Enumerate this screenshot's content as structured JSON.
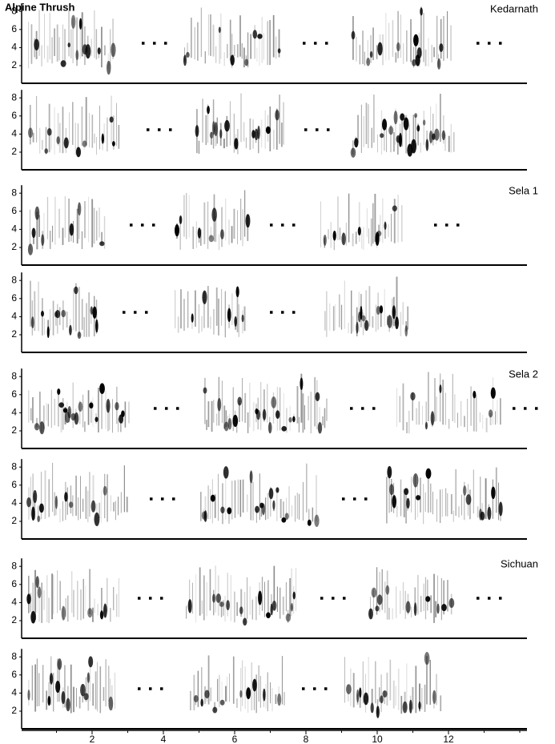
{
  "title": "Alpine Thrush",
  "sites": [
    "Kedarnath",
    "Sela 1",
    "Sela 2",
    "Sichuan"
  ],
  "yticks": [
    2,
    4,
    6,
    8
  ],
  "xticks": [
    2,
    4,
    6,
    8,
    10,
    12
  ]
}
